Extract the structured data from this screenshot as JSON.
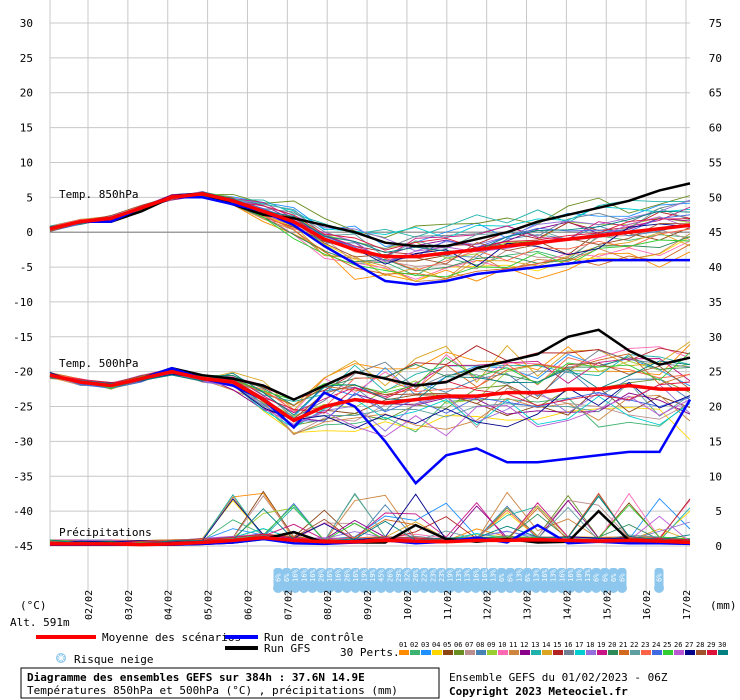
{
  "chart_data": {
    "type": "line",
    "left_axis": {
      "min": -45,
      "max": 30,
      "step": 5,
      "unit_label": "(°C)",
      "ticks": [
        "30",
        "25",
        "20",
        "15",
        "10",
        "5",
        "0",
        "-5",
        "-10",
        "-15",
        "-20",
        "-25",
        "-30",
        "-35",
        "-40",
        "-45"
      ]
    },
    "right_axis": {
      "min": 0,
      "max": 75,
      "step": 5,
      "unit_label": "(mm)",
      "ticks": [
        "75",
        "70",
        "65",
        "60",
        "55",
        "50",
        "45",
        "40",
        "35",
        "30",
        "25",
        "20",
        "15",
        "10",
        "5",
        "0"
      ]
    },
    "x_dates": [
      "02/02",
      "03/02",
      "04/02",
      "05/02",
      "06/02",
      "07/02",
      "08/02",
      "09/02",
      "10/02",
      "11/02",
      "12/02",
      "13/02",
      "14/02",
      "15/02",
      "16/02",
      "17/02"
    ],
    "grid": true,
    "panels": [
      "Temp. 850hPa",
      "Temp. 500hPa",
      "Précipitations"
    ],
    "altitude": "Alt. 591m",
    "snow_risk": [
      "6%",
      "6%",
      "16%",
      "16%",
      "16%",
      "26%",
      "16%",
      "16%",
      "26%",
      "16%",
      "19%",
      "19%",
      "45%",
      "26%",
      "29%",
      "32%",
      "26%",
      "22%",
      "23%",
      "23%",
      "19%",
      "13%",
      "13%",
      "16%",
      "16%",
      "13%",
      "6%",
      "6%",
      "13%",
      "6%",
      "13%",
      "16%",
      "13%",
      "16%",
      "16%",
      "10%",
      "13%",
      "6%",
      "6%",
      "6%",
      "6%"
    ],
    "snow_risk_late": [
      "6%"
    ],
    "series": [
      {
        "name": "Moyenne des scénarios",
        "color": "#ff0000",
        "t850": [
          0.5,
          1.5,
          2,
          3.5,
          5,
          5.5,
          4.5,
          3,
          1.5,
          -1,
          -2.5,
          -3.5,
          -3.5,
          -3,
          -2.5,
          -2,
          -1.5,
          -1,
          -0.5,
          0,
          0.5,
          1
        ],
        "t500": [
          -20.5,
          -21.5,
          -22,
          -21,
          -20,
          -21,
          -21.5,
          -24,
          -27,
          -25,
          -24,
          -24.5,
          -24,
          -23.5,
          -23.5,
          -23,
          -23,
          -22.5,
          -22.5,
          -22,
          -22.5,
          -22.5
        ],
        "precip": [
          0.3,
          0.3,
          0.3,
          0.2,
          0.3,
          0.5,
          0.8,
          1.2,
          0.8,
          0.6,
          0.6,
          0.8,
          0.7,
          0.6,
          0.8,
          0.8,
          0.9,
          0.8,
          0.7,
          0.8,
          0.7,
          0.5
        ]
      },
      {
        "name": "Run de contrôle",
        "color": "#0000ff",
        "t850": [
          0.5,
          1.5,
          1.5,
          3.5,
          5,
          5,
          4,
          3,
          1,
          -2,
          -4.5,
          -7,
          -7.5,
          -7,
          -6,
          -5.5,
          -5,
          -4.5,
          -4,
          -4,
          -4,
          -4
        ],
        "t500": [
          -20.5,
          -21.5,
          -22,
          -21,
          -19.5,
          -21,
          -22,
          -24,
          -28,
          -23,
          -25,
          -30,
          -36,
          -32,
          -31,
          -33,
          -33,
          -32.5,
          -32,
          -31.5,
          -31.5,
          -24
        ],
        "precip": [
          0.2,
          0.2,
          0.2,
          0.2,
          0.2,
          0.3,
          0.5,
          1,
          0.4,
          0.3,
          0.5,
          0.8,
          0.4,
          0.6,
          1.2,
          0.5,
          3,
          0.4,
          0.6,
          0.4,
          0.4,
          0.3
        ]
      },
      {
        "name": "Run GFS",
        "color": "#000000",
        "t850": [
          0.5,
          1.5,
          1.5,
          3,
          5,
          5.5,
          4,
          2.5,
          2,
          1,
          0,
          -1.5,
          -2,
          -2,
          -1,
          0,
          1.5,
          2.5,
          3.5,
          4.5,
          6,
          7
        ],
        "t500": [
          -20.5,
          -21.5,
          -22,
          -21,
          -19.5,
          -20.5,
          -21,
          -22,
          -24,
          -22,
          -20,
          -21,
          -22,
          -21.5,
          -19.5,
          -18.5,
          -17.5,
          -15,
          -14,
          -17,
          -19,
          -18
        ],
        "precip": [
          0.2,
          0.2,
          0.2,
          0.2,
          0.2,
          0.3,
          0.5,
          1,
          2,
          0.5,
          0.5,
          0.5,
          3,
          1,
          0.6,
          1,
          0.5,
          0.6,
          5,
          0.8,
          0.6,
          0.4
        ]
      }
    ]
  },
  "legend": {
    "mean_label": "Moyenne des scénarios",
    "control_label": "Run de contrôle",
    "gfs_label": "Run GFS",
    "snow_label": "Risque neige",
    "perts_label": "30 Perts.",
    "pert_numbers": [
      "01",
      "02",
      "03",
      "04",
      "05",
      "06",
      "07",
      "08",
      "09",
      "10",
      "11",
      "12",
      "13",
      "14",
      "15",
      "16",
      "17",
      "18",
      "19",
      "20",
      "21",
      "22",
      "23",
      "24",
      "25",
      "26",
      "27",
      "28",
      "29",
      "30"
    ],
    "pert_colors": [
      "#ff8c00",
      "#3cb371",
      "#1e90ff",
      "#ffd700",
      "#8b4513",
      "#6b8e23",
      "#bc8f8f",
      "#4682b4",
      "#9acd32",
      "#ff69b4",
      "#cd853f",
      "#8b008b",
      "#20b2aa",
      "#daa520",
      "#b22222",
      "#708090",
      "#00ced1",
      "#9370db",
      "#c71585",
      "#2e8b57",
      "#d2691e",
      "#5f9ea0",
      "#ff6347",
      "#4169e1",
      "#32cd32",
      "#ba55d3",
      "#00008b",
      "#a0522d",
      "#dc143c",
      "#008080"
    ]
  },
  "footer": {
    "title": "Diagramme des ensembles GEFS sur 384h : 37.6N 14.9E",
    "subtitle": "Températures 850hPa et 500hPa (°C) , précipitations (mm)",
    "run": "Ensemble GEFS du 01/02/2023 - 06Z",
    "copyright": "Copyright 2023 Meteociel.fr"
  }
}
